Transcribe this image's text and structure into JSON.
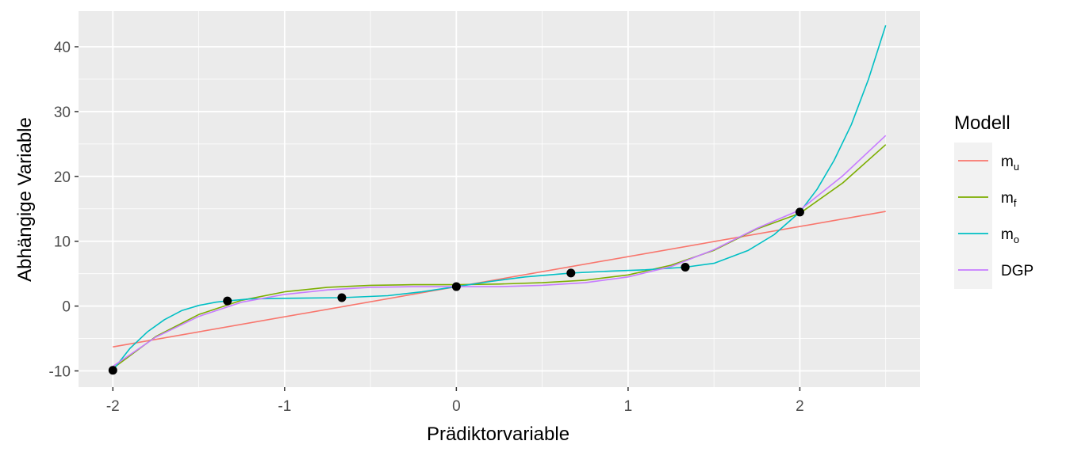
{
  "chart_data": {
    "type": "line",
    "xlabel": "Prädiktorvariable",
    "ylabel": "Abhängige Variable",
    "xlim": [
      -2.2,
      2.7
    ],
    "ylim": [
      -12.5,
      45.5
    ],
    "x_ticks": [
      -2,
      -1,
      0,
      1,
      2
    ],
    "x_tick_labels": [
      "-2",
      "-1",
      "0",
      "1",
      "2"
    ],
    "y_ticks": [
      -10,
      0,
      10,
      20,
      30,
      40
    ],
    "y_tick_labels": [
      "-10",
      "0",
      "10",
      "20",
      "30",
      "40"
    ],
    "grid": true,
    "background": "#ebebeb",
    "legend": {
      "title": "Modell",
      "placement": "right",
      "entries": [
        {
          "label": "m",
          "sub": "u",
          "color": "#F8766D"
        },
        {
          "label": "m",
          "sub": "f",
          "color": "#7CAE00"
        },
        {
          "label": "m",
          "sub": "o",
          "color": "#00BFC4"
        },
        {
          "label": "DGP",
          "sub": "",
          "color": "#C77CFF"
        }
      ]
    },
    "points": {
      "color": "#000000",
      "x": [
        -2,
        -1.333,
        -0.667,
        0,
        0.667,
        1.333,
        2
      ],
      "y": [
        -9.9,
        0.8,
        1.3,
        3.0,
        5.1,
        6.0,
        14.5
      ]
    },
    "series": [
      {
        "color": "#F8766D",
        "x": [
          -2,
          2.5
        ],
        "y": [
          -6.3,
          14.6
        ]
      },
      {
        "color": "#7CAE00",
        "x": [
          -2,
          -1.75,
          -1.5,
          -1.25,
          -1,
          -0.75,
          -0.5,
          -0.25,
          0,
          0.25,
          0.5,
          0.75,
          1,
          1.25,
          1.5,
          1.75,
          2,
          2.25,
          2.5
        ],
        "y": [
          -9.6,
          -4.7,
          -1.3,
          0.9,
          2.2,
          2.9,
          3.2,
          3.3,
          3.3,
          3.4,
          3.6,
          4.0,
          4.8,
          6.3,
          8.6,
          11.9,
          14.3,
          19.0,
          24.9
        ]
      },
      {
        "color": "#00BFC4",
        "x": [
          -2,
          -1.9,
          -1.8,
          -1.7,
          -1.6,
          -1.5,
          -1.4,
          -1.333,
          -1.2,
          -1,
          -0.667,
          -0.4,
          -0.2,
          0,
          0.2,
          0.4,
          0.667,
          0.9,
          1.1,
          1.333,
          1.5,
          1.7,
          1.85,
          2,
          2.1,
          2.2,
          2.3,
          2.4,
          2.5
        ],
        "y": [
          -9.9,
          -6.5,
          -4.0,
          -2.1,
          -0.7,
          0.1,
          0.6,
          0.8,
          1.1,
          1.2,
          1.3,
          1.6,
          2.2,
          3.0,
          3.8,
          4.5,
          5.1,
          5.4,
          5.6,
          6.0,
          6.6,
          8.6,
          11.0,
          14.5,
          18.0,
          22.5,
          28.0,
          35.0,
          43.3
        ]
      },
      {
        "color": "#C77CFF",
        "x": [
          -2,
          -1.75,
          -1.5,
          -1.25,
          -1,
          -0.75,
          -0.5,
          -0.25,
          0,
          0.25,
          0.5,
          0.75,
          1,
          1.25,
          1.5,
          1.75,
          2,
          2.25,
          2.5
        ],
        "y": [
          -9.3,
          -4.8,
          -1.6,
          0.6,
          1.8,
          2.5,
          2.9,
          3.0,
          3.0,
          3.0,
          3.2,
          3.6,
          4.5,
          6.1,
          8.7,
          12.0,
          14.8,
          20.1,
          26.3
        ]
      }
    ]
  }
}
